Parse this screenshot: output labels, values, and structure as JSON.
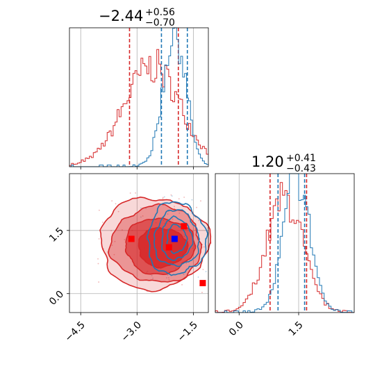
{
  "colors": {
    "red": "#d62728",
    "blue": "#1f77b4",
    "marker_red": "#ff0000",
    "marker_blue": "#0000ff",
    "grid": "#b0b0b0"
  },
  "chart_data": [
    {
      "type": "histogram",
      "panel": "top-left",
      "title": {
        "value": "−2.44",
        "sup": "+0.56",
        "sub": "−0.70"
      },
      "xlim": [
        -4.8,
        -1.1
      ],
      "series": [
        {
          "name": "",
          "color": "#d62728",
          "center": -2.6,
          "sigma": 0.75,
          "peak": 0.72,
          "quantiles": [
            -3.2,
            -1.9
          ]
        },
        {
          "name": "",
          "color": "#1f77b4",
          "center": -2.0,
          "sigma": 0.3,
          "peak": 0.98,
          "quantiles": [
            -2.35,
            -1.66
          ]
        }
      ]
    },
    {
      "type": "contour",
      "panel": "bottom-left",
      "xlim": [
        -4.8,
        -1.1
      ],
      "ylim": [
        -0.45,
        2.85
      ],
      "xticks": [
        -4.5,
        -3.0,
        -1.5
      ],
      "xtick_labels": [
        "−4.5",
        "−3.0",
        "−1.5"
      ],
      "yticks": [
        0.0,
        1.5
      ],
      "ytick_labels": [
        "0.0",
        "1.5"
      ],
      "gridlines": {
        "x": [
          -4.5,
          -3.0,
          -1.5
        ],
        "y": [
          0.0,
          1.5
        ]
      },
      "markers_red": [
        [
          -3.15,
          1.3
        ],
        [
          -1.75,
          1.6
        ],
        [
          -2.15,
          1.1
        ],
        [
          -1.25,
          0.25
        ]
      ],
      "markers_blue": [
        [
          -2.0,
          1.3
        ]
      ]
    },
    {
      "type": "histogram",
      "panel": "bottom-right",
      "title": {
        "value": "1.20",
        "sup": "+0.41",
        "sub": "−0.43"
      },
      "xlim": [
        -0.6,
        2.9
      ],
      "xticks": [
        0.0,
        1.5
      ],
      "xtick_labels": [
        "0.0",
        "1.5"
      ],
      "series": [
        {
          "name": "",
          "color": "#d62728",
          "center": 1.15,
          "sigma": 0.45,
          "peak": 0.82,
          "quantiles": [
            0.78,
            1.7
          ]
        },
        {
          "name": "",
          "color": "#1f77b4",
          "center": 1.45,
          "sigma": 0.33,
          "peak": 0.98,
          "quantiles": [
            0.98,
            1.65
          ]
        }
      ]
    }
  ]
}
